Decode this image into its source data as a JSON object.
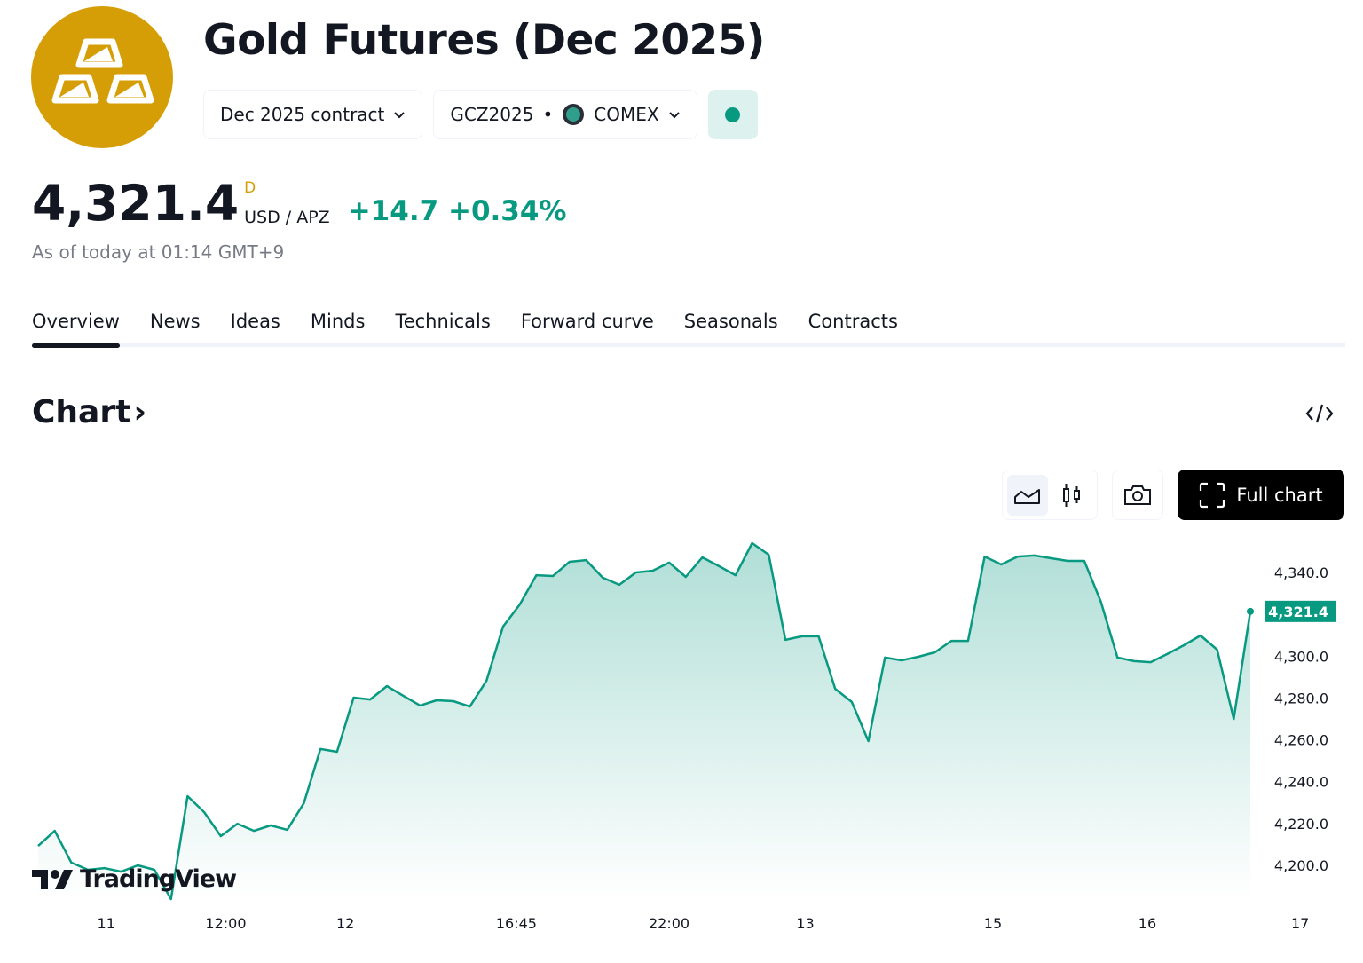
{
  "header": {
    "title": "Gold Futures (Dec 2025)",
    "logo_icon": "gold-bars-icon",
    "contract_dropdown": "Dec 2025 contract",
    "symbol": "GCZ2025",
    "separator": "•",
    "exchange": "COMEX",
    "market_status": "open",
    "brand_color": "#d69e06"
  },
  "quote": {
    "price": "4,321.4",
    "flag": "D",
    "currency": "USD / APZ",
    "change": "+14.7",
    "change_pct": "+0.34%",
    "as_of": "As of today at 01:14 GMT+9",
    "up_color": "#089981"
  },
  "tabs": [
    {
      "label": "Overview",
      "active": true
    },
    {
      "label": "News"
    },
    {
      "label": "Ideas"
    },
    {
      "label": "Minds"
    },
    {
      "label": "Technicals"
    },
    {
      "label": "Forward curve"
    },
    {
      "label": "Seasonals"
    },
    {
      "label": "Contracts"
    }
  ],
  "chart_section": {
    "heading": "Chart",
    "heading_chevron": "›",
    "full_chart_label": "Full chart",
    "watermark": "TradingView"
  },
  "chart_data": {
    "type": "area",
    "line_color": "#089981",
    "ylim": [
      4180,
      4360
    ],
    "yticks": [
      "4,200.0",
      "4,220.0",
      "4,240.0",
      "4,260.0",
      "4,280.0",
      "4,300.0",
      "4,340.0"
    ],
    "ytick_values": [
      4200,
      4220,
      4240,
      4260,
      4280,
      4300,
      4340
    ],
    "last_value_label": "4,321.4",
    "last_value": 4321.4,
    "xticks": [
      {
        "label": "11",
        "index": 4.1
      },
      {
        "label": "12:00",
        "index": 11.3
      },
      {
        "label": "12",
        "index": 18.5
      },
      {
        "label": "16:45",
        "index": 28.8
      },
      {
        "label": "22:00",
        "index": 38
      },
      {
        "label": "13",
        "index": 46.2
      },
      {
        "label": "15",
        "index": 57.5
      },
      {
        "label": "16",
        "index": 66.8
      },
      {
        "label": "17",
        "index": 76
      }
    ],
    "values": [
      4209.3,
      4216.5,
      4201.3,
      4197.9,
      4198.7,
      4197.0,
      4200.0,
      4197.9,
      4183.9,
      4233.1,
      4225.4,
      4214.0,
      4219.9,
      4216.5,
      4219.1,
      4217.0,
      4229.7,
      4255.6,
      4254.3,
      4280.2,
      4279.3,
      4285.7,
      4281.0,
      4276.4,
      4278.9,
      4278.5,
      4275.9,
      4288.2,
      4314.1,
      4324.7,
      4338.7,
      4338.3,
      4345.1,
      4345.9,
      4337.5,
      4334.1,
      4340.0,
      4340.8,
      4344.7,
      4337.9,
      4347.2,
      4343.0,
      4338.7,
      4354.0,
      4348.5,
      4307.8,
      4309.5,
      4309.5,
      4284.4,
      4278.1,
      4259.4,
      4299.3,
      4298.0,
      4299.7,
      4301.8,
      4307.3,
      4307.3,
      4347.6,
      4343.8,
      4347.6,
      4348.1,
      4346.8,
      4345.5,
      4345.5,
      4326.0,
      4299.3,
      4297.6,
      4297.1,
      4301.0,
      4305.2,
      4309.9,
      4303.1,
      4270.0,
      4321.4
    ]
  }
}
